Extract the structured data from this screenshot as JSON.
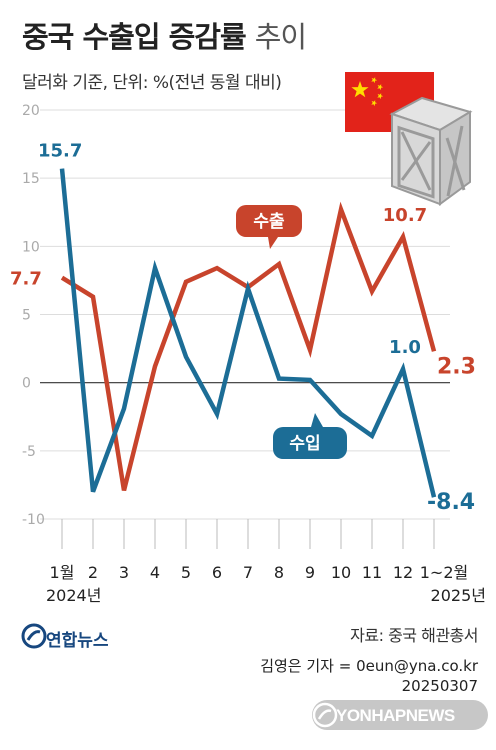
{
  "title_main": "중국 수출입 증감률",
  "title_light": "추이",
  "subtitle": "달러화 기준, 단위: %(전년 동월 대비)",
  "colors": {
    "export": "#c8442c",
    "import": "#1c6d96",
    "grid": "#dddddd",
    "zero": "#333333",
    "flag_red": "#e2231a",
    "flag_star": "#ffde00",
    "brand": "#17477f"
  },
  "chart_data": {
    "type": "line",
    "categories": [
      "1월",
      "2",
      "3",
      "4",
      "5",
      "6",
      "7",
      "8",
      "9",
      "10",
      "11",
      "12",
      "1~2월"
    ],
    "year_labels": [
      "2024년",
      "2025년"
    ],
    "yticks": [
      20,
      15,
      10,
      5,
      0,
      -5,
      -10
    ],
    "ylim": [
      -10,
      20
    ],
    "series": [
      {
        "name": "수출",
        "key": "export",
        "values": [
          7.7,
          6.3,
          -7.9,
          1.2,
          7.4,
          8.4,
          7.0,
          8.7,
          2.4,
          12.7,
          6.7,
          10.7,
          2.3
        ]
      },
      {
        "name": "수입",
        "key": "import",
        "values": [
          15.7,
          -8.0,
          -1.9,
          8.4,
          1.9,
          -2.3,
          6.9,
          0.3,
          0.2,
          -2.3,
          -3.9,
          1.0,
          -8.4
        ]
      }
    ],
    "data_labels": {
      "export_first": "7.7",
      "export_peak": "10.7",
      "export_last": "2.3",
      "import_first": "15.7",
      "import_12": "1.0",
      "import_last": "-8.4"
    }
  },
  "source": "자료: 중국 해관총서",
  "byline_line1": "김영은 기자 = 0eun@yna.co.kr",
  "byline_line2": "20250307",
  "logo_text": "연합뉴스",
  "watermark": "YONHAPNEWS",
  "icons": [
    "china-flag-icon",
    "shipping-crate-icon",
    "yonhap-logo-icon"
  ]
}
